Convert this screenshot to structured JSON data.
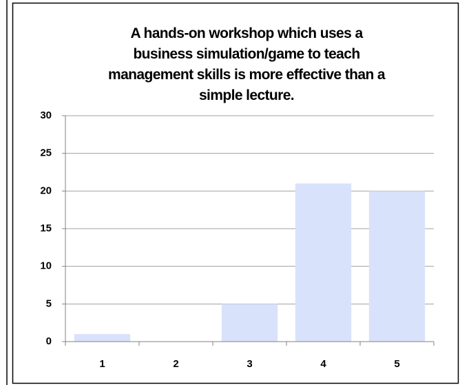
{
  "chart_data": {
    "type": "bar",
    "title": "A hands-on workshop which uses a\nbusiness simulation/game to teach\nmanagement skills is more effective than a\nsimple lecture.",
    "categories": [
      "1",
      "2",
      "3",
      "4",
      "5"
    ],
    "values": [
      1,
      0,
      5,
      21,
      20
    ],
    "color": "#d9e2fb",
    "ylim": [
      0,
      30
    ],
    "yticks": [
      0,
      5,
      10,
      15,
      20,
      25,
      30
    ],
    "grid": true
  }
}
